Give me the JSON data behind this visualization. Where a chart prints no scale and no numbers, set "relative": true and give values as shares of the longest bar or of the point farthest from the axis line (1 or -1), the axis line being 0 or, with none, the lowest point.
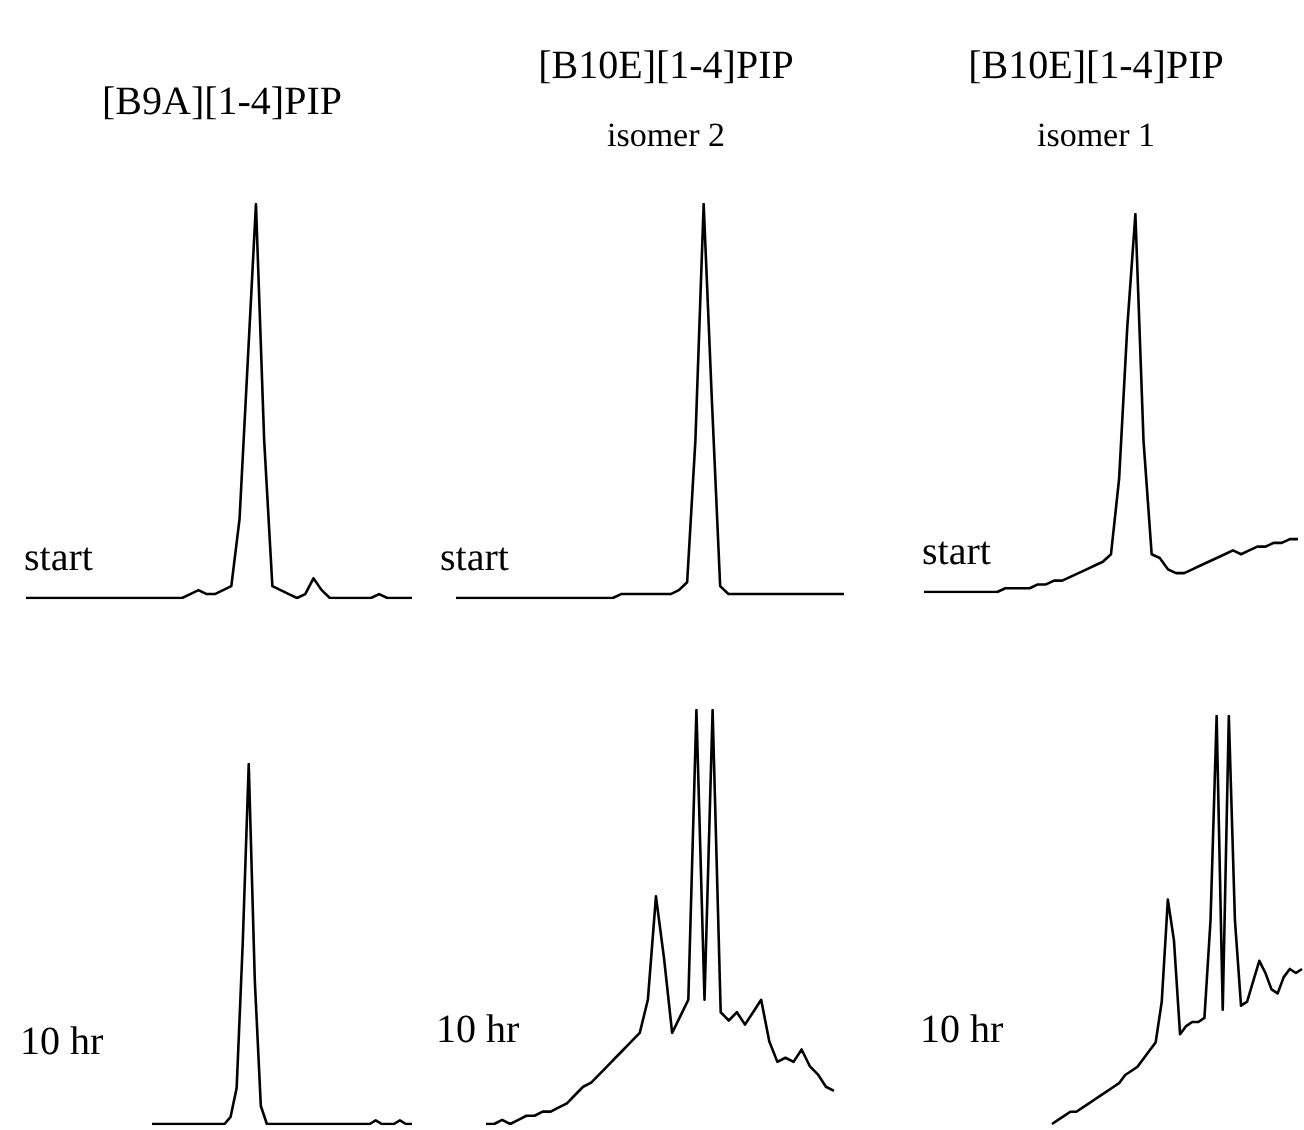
{
  "chart_data": [
    {
      "type": "line",
      "title": "[B9A][1-4]PIP",
      "relative": true,
      "marker": "none",
      "annotations": [
        "start"
      ],
      "categories": [
        null,
        null,
        null,
        null,
        null,
        null,
        null,
        null,
        null,
        null,
        null,
        null,
        null,
        null,
        null,
        null,
        null,
        null,
        null,
        null,
        null,
        null,
        null,
        null,
        null,
        null,
        null,
        null,
        null,
        null,
        null,
        null,
        null,
        null,
        null,
        null,
        null,
        null,
        null,
        null,
        null,
        null,
        null,
        null,
        null,
        null,
        null,
        null
      ],
      "series": [
        {
          "color": "#000000",
          "values": [
            0,
            0,
            0,
            0,
            0,
            0,
            0,
            0,
            0,
            0,
            0,
            0,
            0,
            0,
            0,
            0,
            0,
            0,
            0,
            0,
            0.01,
            0.02,
            0.01,
            0.01,
            0.02,
            0.03,
            0.2,
            0.6,
            1,
            0.4,
            0.03,
            0.02,
            0.01,
            0,
            0.01,
            0.05,
            0.02,
            0,
            0,
            0,
            0,
            0,
            0,
            0.01,
            0,
            0,
            0,
            0
          ]
        }
      ]
    },
    {
      "type": "line",
      "title": "[B10E][1-4]PIP",
      "subtitle": "isomer 2",
      "relative": true,
      "marker": "none",
      "annotations": [
        "start"
      ],
      "categories": [
        null,
        null,
        null,
        null,
        null,
        null,
        null,
        null,
        null,
        null,
        null,
        null,
        null,
        null,
        null,
        null,
        null,
        null,
        null,
        null,
        null,
        null,
        null,
        null,
        null,
        null,
        null,
        null,
        null,
        null,
        null,
        null,
        null,
        null,
        null,
        null,
        null,
        null,
        null,
        null,
        null,
        null,
        null,
        null,
        null,
        null,
        null,
        null
      ],
      "series": [
        {
          "color": "#000000",
          "values": [
            0,
            0,
            0,
            0,
            0,
            0,
            0,
            0,
            0,
            0,
            0,
            0,
            0,
            0,
            0,
            0,
            0,
            0,
            0,
            0,
            0.01,
            0.01,
            0.01,
            0.01,
            0.01,
            0.01,
            0.01,
            0.02,
            0.04,
            0.4,
            1,
            0.5,
            0.03,
            0.01,
            0.01,
            0.01,
            0.01,
            0.01,
            0.01,
            0.01,
            0.01,
            0.01,
            0.01,
            0.01,
            0.01,
            0.01,
            0.01,
            0.01
          ]
        }
      ]
    },
    {
      "type": "line",
      "title": "[B10E][1-4]PIP",
      "subtitle": "isomer 1",
      "relative": true,
      "marker": "none",
      "annotations": [
        "start"
      ],
      "categories": [
        null,
        null,
        null,
        null,
        null,
        null,
        null,
        null,
        null,
        null,
        null,
        null,
        null,
        null,
        null,
        null,
        null,
        null,
        null,
        null,
        null,
        null,
        null,
        null,
        null,
        null,
        null,
        null,
        null,
        null,
        null,
        null,
        null,
        null,
        null,
        null,
        null,
        null,
        null,
        null,
        null,
        null,
        null,
        null,
        null,
        null,
        null
      ],
      "series": [
        {
          "color": "#000000",
          "values": [
            0,
            0,
            0,
            0,
            0,
            0,
            0,
            0,
            0,
            0,
            0.01,
            0.01,
            0.01,
            0.01,
            0.02,
            0.02,
            0.03,
            0.03,
            0.04,
            0.05,
            0.06,
            0.07,
            0.08,
            0.1,
            0.3,
            0.7,
            1,
            0.4,
            0.1,
            0.09,
            0.06,
            0.05,
            0.05,
            0.06,
            0.07,
            0.08,
            0.09,
            0.1,
            0.11,
            0.1,
            0.11,
            0.12,
            0.12,
            0.13,
            0.13,
            0.14,
            0.14
          ]
        }
      ]
    },
    {
      "type": "line",
      "relative": true,
      "marker": "none",
      "annotations": [
        "10 hr"
      ],
      "categories": [
        null,
        null,
        null,
        null,
        null,
        null,
        null,
        null,
        null,
        null,
        null,
        null,
        null,
        null,
        null,
        null,
        null,
        null,
        null,
        null,
        null,
        null,
        null,
        null,
        null,
        null,
        null,
        null,
        null,
        null,
        null,
        null,
        null,
        null,
        null,
        null,
        null,
        null,
        null,
        null,
        null,
        null,
        null,
        null
      ],
      "series": [
        {
          "color": "#000000",
          "values": [
            0,
            0,
            0,
            0,
            0,
            0,
            0,
            0,
            0,
            0,
            0,
            0,
            0,
            0.02,
            0.1,
            0.5,
            1,
            0.4,
            0.05,
            0,
            0,
            0,
            0,
            0,
            0,
            0,
            0,
            0,
            0,
            0,
            0,
            0,
            0,
            0,
            0,
            0,
            0,
            0.01,
            0,
            0,
            0,
            0.01,
            0,
            0
          ]
        }
      ]
    },
    {
      "type": "line",
      "relative": true,
      "marker": "none",
      "annotations": [
        "10 hr"
      ],
      "categories": [
        null,
        null,
        null,
        null,
        null,
        null,
        null,
        null,
        null,
        null,
        null,
        null,
        null,
        null,
        null,
        null,
        null,
        null,
        null,
        null,
        null,
        null,
        null,
        null,
        null,
        null,
        null,
        null,
        null,
        null,
        null,
        null,
        null,
        null,
        null,
        null,
        null,
        null,
        null,
        null,
        null,
        null,
        null,
        null
      ],
      "series": [
        {
          "color": "#000000",
          "values": [
            0,
            0,
            0.01,
            0,
            0.01,
            0.02,
            0.02,
            0.03,
            0.03,
            0.04,
            0.05,
            0.07,
            0.09,
            0.1,
            0.12,
            0.14,
            0.16,
            0.18,
            0.2,
            0.22,
            0.3,
            0.55,
            0.4,
            0.22,
            0.26,
            0.3,
            1,
            0.3,
            1,
            0.27,
            0.25,
            0.27,
            0.24,
            0.27,
            0.3,
            0.2,
            0.15,
            0.16,
            0.15,
            0.18,
            0.14,
            0.12,
            0.09,
            0.08
          ]
        }
      ]
    },
    {
      "type": "line",
      "relative": true,
      "marker": "none",
      "annotations": [
        "10 hr"
      ],
      "categories": [
        null,
        null,
        null,
        null,
        null,
        null,
        null,
        null,
        null,
        null,
        null,
        null,
        null,
        null,
        null,
        null,
        null,
        null,
        null,
        null,
        null,
        null,
        null,
        null,
        null,
        null,
        null,
        null,
        null,
        null,
        null,
        null,
        null,
        null,
        null,
        null,
        null,
        null,
        null,
        null,
        null,
        null
      ],
      "series": [
        {
          "color": "#000000",
          "values": [
            0,
            0.01,
            0.02,
            0.03,
            0.03,
            0.04,
            0.05,
            0.06,
            0.07,
            0.08,
            0.09,
            0.1,
            0.12,
            0.13,
            0.14,
            0.16,
            0.18,
            0.2,
            0.3,
            0.55,
            0.45,
            0.22,
            0.24,
            0.25,
            0.25,
            0.26,
            0.5,
            1,
            0.28,
            1,
            0.5,
            0.29,
            0.3,
            0.35,
            0.4,
            0.37,
            0.33,
            0.32,
            0.36,
            0.38,
            0.37,
            0.38
          ]
        }
      ]
    }
  ]
}
